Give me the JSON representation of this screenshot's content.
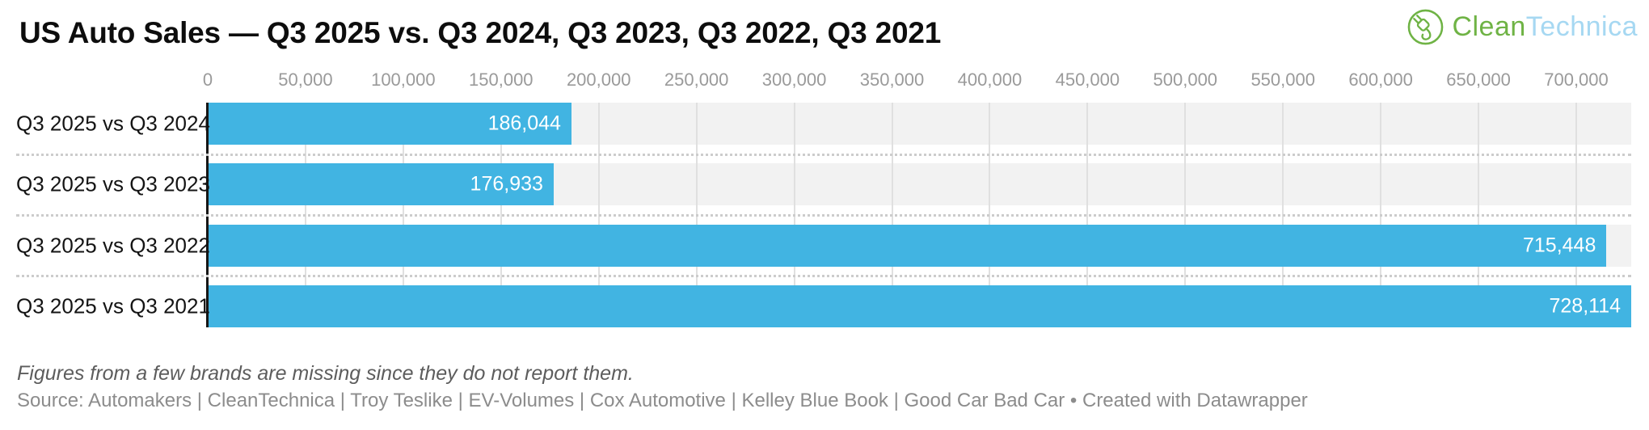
{
  "header": {
    "title": "US Auto Sales — Q3 2025 vs. Q3 2024, Q3 2023, Q3 2022, Q3 2021"
  },
  "logo": {
    "name": "CleanTechnica",
    "part_green": "Clean",
    "part_blue": "Technica",
    "green_color": "#6fb345",
    "blue_color": "#a6d8f2"
  },
  "chart_data": {
    "type": "bar",
    "orientation": "horizontal",
    "title": "US Auto Sales — Q3 2025 vs. Q3 2024, Q3 2023, Q3 2022, Q3 2021",
    "categories": [
      "Q3 2025 vs Q3 2024",
      "Q3 2025 vs Q3 2023",
      "Q3 2025 vs Q3 2022",
      "Q3 2025 vs Q3 2021"
    ],
    "values": [
      186044,
      176933,
      715448,
      728114
    ],
    "value_labels": [
      "186,044",
      "176,933",
      "715,448",
      "728,114"
    ],
    "xlim": [
      0,
      728114
    ],
    "tick_step": 50000,
    "ticks": [
      {
        "value": 0,
        "label": "0"
      },
      {
        "value": 50000,
        "label": "50,000"
      },
      {
        "value": 100000,
        "label": "100,000"
      },
      {
        "value": 150000,
        "label": "150,000"
      },
      {
        "value": 200000,
        "label": "200,000"
      },
      {
        "value": 250000,
        "label": "250,000"
      },
      {
        "value": 300000,
        "label": "300,000"
      },
      {
        "value": 350000,
        "label": "350,000"
      },
      {
        "value": 400000,
        "label": "400,000"
      },
      {
        "value": 450000,
        "label": "450,000"
      },
      {
        "value": 500000,
        "label": "500,000"
      },
      {
        "value": 550000,
        "label": "550,000"
      },
      {
        "value": 600000,
        "label": "600,000"
      },
      {
        "value": 650000,
        "label": "650,000"
      },
      {
        "value": 700000,
        "label": "700,000"
      }
    ],
    "bar_color": "#41b4e2",
    "stripe_color": "#f2f2f2",
    "gridline_color": "#e0e0e0",
    "grid": true,
    "legend": "none"
  },
  "footnote": "Figures from a few brands are missing since they do not report them.",
  "source": "Source: Automakers | CleanTechnica | Troy Teslike | EV-Volumes | Cox Automotive | Kelley Blue Book | Good Car Bad Car • Created with Datawrapper"
}
